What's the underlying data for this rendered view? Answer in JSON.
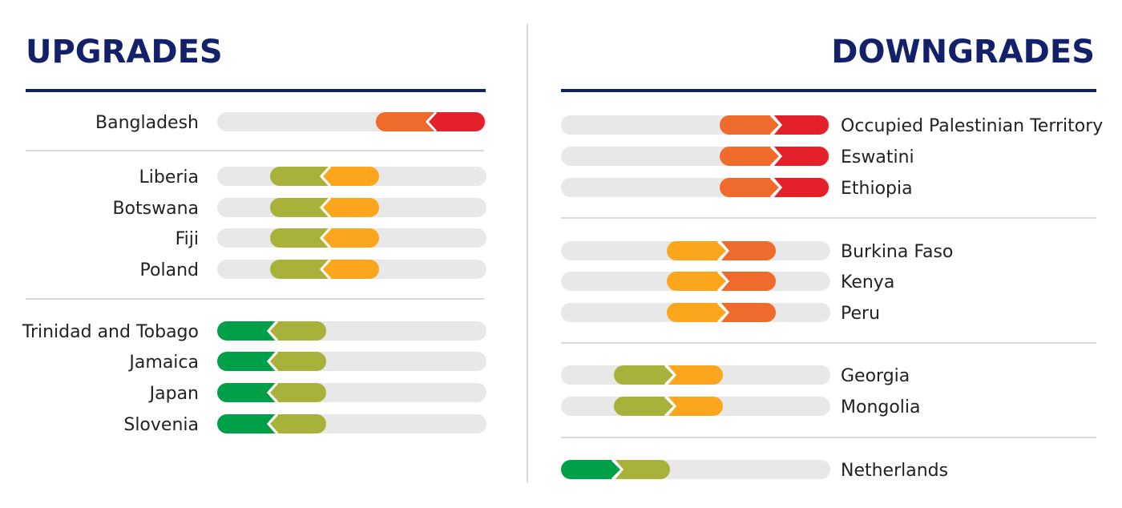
{
  "colors": {
    "title": "#13216a",
    "track": "#e8e8e8",
    "divider": "#d9d9d9",
    "label": "#222222",
    "level1": "#00a04a",
    "level2": "#a8b23a",
    "level3": "#fba61c",
    "level4": "#ef6b2b",
    "level5": "#e4212b"
  },
  "upgrades": {
    "title": "UPGRADES",
    "groups": [
      {
        "rows": [
          {
            "label": "Bangladesh",
            "from": 5,
            "to": 4
          }
        ]
      },
      {
        "rows": [
          {
            "label": "Liberia",
            "from": 3,
            "to": 2
          },
          {
            "label": "Botswana",
            "from": 3,
            "to": 2
          },
          {
            "label": "Fiji",
            "from": 3,
            "to": 2
          },
          {
            "label": "Poland",
            "from": 3,
            "to": 2
          }
        ]
      },
      {
        "rows": [
          {
            "label": "Trinidad and Tobago",
            "from": 2,
            "to": 1
          },
          {
            "label": "Jamaica",
            "from": 2,
            "to": 1
          },
          {
            "label": "Japan",
            "from": 2,
            "to": 1
          },
          {
            "label": "Slovenia",
            "from": 2,
            "to": 1
          }
        ]
      }
    ]
  },
  "downgrades": {
    "title": "DOWNGRADES",
    "groups": [
      {
        "rows": [
          {
            "label": "Occupied Palestinian Territory",
            "from": 4,
            "to": 5
          },
          {
            "label": "Eswatini",
            "from": 4,
            "to": 5
          },
          {
            "label": "Ethiopia",
            "from": 4,
            "to": 5
          }
        ]
      },
      {
        "rows": [
          {
            "label": "Burkina Faso",
            "from": 3,
            "to": 4
          },
          {
            "label": "Kenya",
            "from": 3,
            "to": 4
          },
          {
            "label": "Peru",
            "from": 3,
            "to": 4
          }
        ]
      },
      {
        "rows": [
          {
            "label": "Georgia",
            "from": 2,
            "to": 3
          },
          {
            "label": "Mongolia",
            "from": 2,
            "to": 3
          }
        ]
      },
      {
        "rows": [
          {
            "label": "Netherlands",
            "from": 1,
            "to": 2
          }
        ]
      }
    ]
  }
}
